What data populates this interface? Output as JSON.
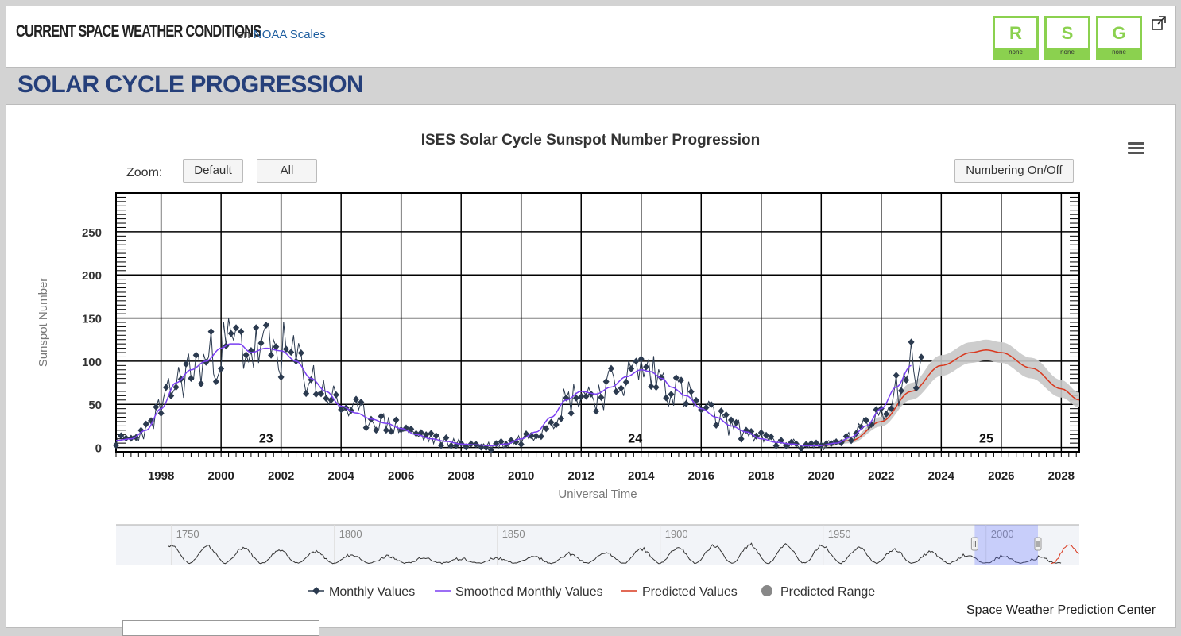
{
  "header": {
    "title": "CURRENT SPACE WEATHER CONDITIONS",
    "on_text": "on",
    "link_text": "NOAA Scales",
    "scales": [
      {
        "letter": "R",
        "level": "none"
      },
      {
        "letter": "S",
        "level": "none"
      },
      {
        "letter": "G",
        "level": "none"
      }
    ]
  },
  "section": {
    "title": "SOLAR CYCLE PROGRESSION"
  },
  "toolbar": {
    "zoom_label": "Zoom:",
    "default_label": "Default",
    "all_label": "All",
    "numbering_label": "Numbering On/Off",
    "menu_icon": "hamburger-menu-icon"
  },
  "chart_data": {
    "type": "line",
    "title": "ISES Solar Cycle Sunspot Number Progression",
    "xlabel": "Universal Time",
    "ylabel": "Sunspot Number",
    "xlim": [
      1996.5,
      2028.6
    ],
    "ylim": [
      -5,
      295
    ],
    "x_ticks": [
      "1998",
      "2000",
      "2002",
      "2004",
      "2006",
      "2008",
      "2010",
      "2012",
      "2014",
      "2016",
      "2018",
      "2020",
      "2022",
      "2024",
      "2026",
      "2028"
    ],
    "y_ticks": [
      "0",
      "50",
      "100",
      "150",
      "200",
      "250"
    ],
    "cycle_labels": [
      {
        "label": "23",
        "x": 2001.5,
        "y": 10
      },
      {
        "label": "24",
        "x": 2013.8,
        "y": 10
      },
      {
        "label": "25",
        "x": 2025.5,
        "y": 10
      }
    ],
    "colors": {
      "monthly": "#2b3a4f",
      "smoothed": "#7b3ff2",
      "predicted": "#d9381e",
      "range": "#c8c8c8"
    },
    "smoothed_anchors": [
      [
        1996.5,
        8
      ],
      [
        1997.0,
        10
      ],
      [
        1997.5,
        20
      ],
      [
        1998.0,
        45
      ],
      [
        1998.5,
        75
      ],
      [
        1999.0,
        90
      ],
      [
        1999.5,
        100
      ],
      [
        2000.0,
        115
      ],
      [
        2000.3,
        120
      ],
      [
        2000.6,
        120
      ],
      [
        2001.0,
        110
      ],
      [
        2001.5,
        115
      ],
      [
        2002.0,
        112
      ],
      [
        2002.5,
        100
      ],
      [
        2003.0,
        80
      ],
      [
        2003.5,
        65
      ],
      [
        2004.0,
        48
      ],
      [
        2004.5,
        40
      ],
      [
        2005.0,
        33
      ],
      [
        2005.5,
        28
      ],
      [
        2006.0,
        22
      ],
      [
        2006.5,
        15
      ],
      [
        2007.0,
        10
      ],
      [
        2007.5,
        7
      ],
      [
        2008.0,
        4
      ],
      [
        2008.5,
        3
      ],
      [
        2009.0,
        2
      ],
      [
        2009.5,
        4
      ],
      [
        2010.0,
        10
      ],
      [
        2010.5,
        18
      ],
      [
        2011.0,
        35
      ],
      [
        2011.5,
        55
      ],
      [
        2012.0,
        65
      ],
      [
        2012.5,
        62
      ],
      [
        2013.0,
        70
      ],
      [
        2013.5,
        82
      ],
      [
        2014.0,
        90
      ],
      [
        2014.3,
        88
      ],
      [
        2014.7,
        80
      ],
      [
        2015.0,
        70
      ],
      [
        2015.5,
        60
      ],
      [
        2016.0,
        45
      ],
      [
        2016.5,
        35
      ],
      [
        2017.0,
        25
      ],
      [
        2017.5,
        18
      ],
      [
        2018.0,
        10
      ],
      [
        2018.5,
        6
      ],
      [
        2019.0,
        4
      ],
      [
        2019.5,
        2
      ],
      [
        2019.9,
        2
      ],
      [
        2020.5,
        5
      ],
      [
        2021.0,
        12
      ],
      [
        2021.5,
        25
      ],
      [
        2022.0,
        45
      ],
      [
        2022.5,
        70
      ],
      [
        2023.0,
        95
      ]
    ],
    "predicted_anchors": [
      [
        2020.0,
        2
      ],
      [
        2021.0,
        8
      ],
      [
        2022.0,
        30
      ],
      [
        2023.0,
        65
      ],
      [
        2024.0,
        95
      ],
      [
        2025.0,
        110
      ],
      [
        2025.5,
        113
      ],
      [
        2026.0,
        110
      ],
      [
        2027.0,
        92
      ],
      [
        2028.0,
        68
      ],
      [
        2028.6,
        55
      ]
    ],
    "range_width": 12,
    "monthly_seed": 23,
    "navigator": {
      "labels": [
        "1750",
        "1800",
        "1850",
        "1900",
        "1950",
        "2000"
      ],
      "selected_range": [
        1996.5,
        2028.6
      ]
    },
    "legend": [
      {
        "name": "Monthly Values",
        "symbol": "diamond"
      },
      {
        "name": "Smoothed Monthly Values",
        "symbol": "line"
      },
      {
        "name": "Predicted Values",
        "symbol": "line"
      },
      {
        "name": "Predicted Range",
        "symbol": "circle"
      }
    ]
  },
  "footer": {
    "credit": "Space Weather Prediction Center"
  }
}
